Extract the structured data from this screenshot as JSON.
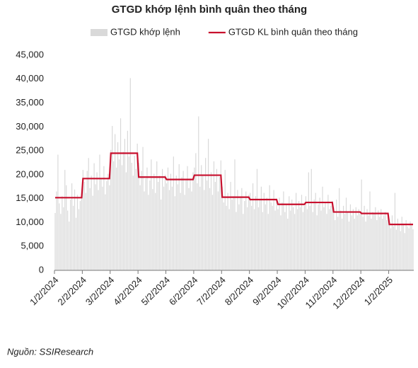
{
  "chart_data": {
    "type": "bar-line",
    "title": "GTGD khớp lệnh bình quân theo tháng",
    "source": "Nguồn: SSIResearch",
    "categories": [
      "1/2/2024",
      null,
      null,
      null,
      null,
      null,
      null,
      null,
      null,
      null,
      null,
      null,
      null,
      null,
      null,
      null,
      null,
      null,
      null,
      null,
      "2/2/2024",
      null,
      null,
      null,
      null,
      null,
      null,
      null,
      null,
      null,
      null,
      null,
      null,
      null,
      null,
      null,
      null,
      null,
      null,
      null,
      "3/2/2024",
      null,
      null,
      null,
      null,
      null,
      null,
      null,
      null,
      null,
      null,
      null,
      null,
      null,
      null,
      null,
      null,
      null,
      null,
      null,
      "4/2/2024",
      null,
      null,
      null,
      null,
      null,
      null,
      null,
      null,
      null,
      null,
      null,
      null,
      null,
      null,
      null,
      null,
      null,
      null,
      null,
      "5/2/2024",
      null,
      null,
      null,
      null,
      null,
      null,
      null,
      null,
      null,
      null,
      null,
      null,
      null,
      null,
      null,
      null,
      null,
      null,
      null,
      "6/2/2024",
      null,
      null,
      null,
      null,
      null,
      null,
      null,
      null,
      null,
      null,
      null,
      null,
      null,
      null,
      null,
      null,
      null,
      null,
      null,
      "7/2/2024",
      null,
      null,
      null,
      null,
      null,
      null,
      null,
      null,
      null,
      null,
      null,
      null,
      null,
      null,
      null,
      null,
      null,
      null,
      null,
      "8/2/2024",
      null,
      null,
      null,
      null,
      null,
      null,
      null,
      null,
      null,
      null,
      null,
      null,
      null,
      null,
      null,
      null,
      null,
      null,
      null,
      "9/2/2024",
      null,
      null,
      null,
      null,
      null,
      null,
      null,
      null,
      null,
      null,
      null,
      null,
      null,
      null,
      null,
      null,
      null,
      null,
      null,
      "10/2/2024",
      null,
      null,
      null,
      null,
      null,
      null,
      null,
      null,
      null,
      null,
      null,
      null,
      null,
      null,
      null,
      null,
      null,
      null,
      null,
      "11/2/2024",
      null,
      null,
      null,
      null,
      null,
      null,
      null,
      null,
      null,
      null,
      null,
      null,
      null,
      null,
      null,
      null,
      null,
      null,
      null,
      "12/2/2024",
      null,
      null,
      null,
      null,
      null,
      null,
      null,
      null,
      null,
      null,
      null,
      null,
      null,
      null,
      null,
      null,
      null,
      null,
      null,
      "1/2/2025",
      null,
      null,
      null,
      null,
      null,
      null,
      null,
      null,
      null,
      null,
      null,
      null,
      null,
      null,
      null,
      null,
      null
    ],
    "series": [
      {
        "name": "GTGD khớp lệnh",
        "color": "#d9d9d9",
        "kind": "bar",
        "values": [
          12000,
          16500,
          24200,
          14000,
          11800,
          15500,
          13200,
          21000,
          17800,
          12500,
          10200,
          14800,
          18200,
          13500,
          16900,
          11000,
          15800,
          12800,
          14500,
          16000,
          21000,
          18500,
          16200,
          20800,
          23500,
          17200,
          19800,
          15600,
          22400,
          18000,
          20500,
          16800,
          24200,
          19100,
          17500,
          21800,
          15900,
          18700,
          20200,
          17800,
          25200,
          30200,
          22800,
          28500,
          21500,
          26800,
          23200,
          31800,
          22000,
          24800,
          27500,
          20500,
          29200,
          23800,
          40200,
          22500,
          19800,
          24000,
          21200,
          26500,
          22500,
          17800,
          20800,
          25800,
          16500,
          19200,
          21500,
          15800,
          18800,
          23200,
          17000,
          20200,
          16200,
          22800,
          18500,
          19800,
          14800,
          21200,
          17500,
          20000,
          18200,
          21500,
          16800,
          20200,
          17500,
          23800,
          15500,
          19800,
          18000,
          22200,
          16200,
          19500,
          20800,
          15800,
          18800,
          21800,
          17200,
          19200,
          16500,
          20500,
          21500,
          24500,
          18200,
          32200,
          17500,
          22000,
          19800,
          16800,
          23500,
          18800,
          27500,
          17200,
          20500,
          15800,
          22800,
          18500,
          21200,
          16500,
          19500,
          23000,
          17500,
          14200,
          21000,
          13500,
          16200,
          12800,
          18500,
          14800,
          15500,
          23200,
          12200,
          16800,
          13800,
          15200,
          17200,
          11800,
          14500,
          16500,
          13200,
          15800,
          16200,
          13500,
          18200,
          12800,
          15500,
          21200,
          13200,
          14800,
          17500,
          12200,
          16200,
          13800,
          15200,
          11800,
          17800,
          14200,
          13500,
          16800,
          12500,
          15000,
          12800,
          15200,
          11500,
          14200,
          16500,
          12200,
          13800,
          10800,
          15500,
          12500,
          14800,
          13200,
          11800,
          16200,
          12800,
          14500,
          13200,
          15800,
          12200,
          13500,
          15500,
          12800,
          20500,
          13500,
          21200,
          12200,
          14800,
          16200,
          11500,
          13800,
          15200,
          12500,
          17500,
          13200,
          14200,
          11800,
          15800,
          12800,
          13500,
          14500,
          13200,
          10500,
          14800,
          11200,
          17200,
          12500,
          10800,
          13500,
          11800,
          15200,
          12200,
          10200,
          13800,
          11500,
          12800,
          10800,
          13200,
          11500,
          12800,
          11800,
          19000,
          11200,
          13500,
          10200,
          12800,
          11500,
          16500,
          10800,
          12200,
          11800,
          13200,
          10500,
          12500,
          11200,
          12800,
          10800,
          11500,
          12200,
          10500,
          11800,
          10200,
          8800,
          11500,
          9200,
          16200,
          8500,
          10800,
          9500,
          8200,
          11200,
          9800,
          7800,
          10500,
          9200,
          8800,
          10200,
          9500,
          8600
        ]
      },
      {
        "name": "GTGD KL bình quân theo tháng",
        "color": "#c8102e",
        "kind": "line",
        "values": [
          15200,
          15200,
          15200,
          15200,
          15200,
          15200,
          15200,
          15200,
          15200,
          15200,
          15200,
          15200,
          15200,
          15200,
          15200,
          15200,
          15200,
          15200,
          15200,
          15200,
          19200,
          19200,
          19200,
          19200,
          19200,
          19200,
          19200,
          19200,
          19200,
          19200,
          19200,
          19200,
          19200,
          19200,
          19200,
          19200,
          19200,
          19200,
          19200,
          19200,
          24500,
          24500,
          24500,
          24500,
          24500,
          24500,
          24500,
          24500,
          24500,
          24500,
          24500,
          24500,
          24500,
          24500,
          24500,
          24500,
          24500,
          24500,
          24500,
          24500,
          19500,
          19500,
          19500,
          19500,
          19500,
          19500,
          19500,
          19500,
          19500,
          19500,
          19500,
          19500,
          19500,
          19500,
          19500,
          19500,
          19500,
          19500,
          19500,
          19500,
          19000,
          19000,
          19000,
          19000,
          19000,
          19000,
          19000,
          19000,
          19000,
          19000,
          19000,
          19000,
          19000,
          19000,
          19000,
          19000,
          19000,
          19000,
          19000,
          19000,
          19900,
          19900,
          19900,
          19900,
          19900,
          19900,
          19900,
          19900,
          19900,
          19900,
          19900,
          19900,
          19900,
          19900,
          19900,
          19900,
          19900,
          19900,
          19900,
          19900,
          15300,
          15300,
          15300,
          15300,
          15300,
          15300,
          15300,
          15300,
          15300,
          15300,
          15300,
          15300,
          15300,
          15300,
          15300,
          15300,
          15300,
          15300,
          15300,
          15300,
          14800,
          14800,
          14800,
          14800,
          14800,
          14800,
          14800,
          14800,
          14800,
          14800,
          14800,
          14800,
          14800,
          14800,
          14800,
          14800,
          14800,
          14800,
          14800,
          14800,
          13800,
          13800,
          13800,
          13800,
          13800,
          13800,
          13800,
          13800,
          13800,
          13800,
          13800,
          13800,
          13800,
          13800,
          13800,
          13800,
          13800,
          13800,
          13800,
          13800,
          14200,
          14200,
          14200,
          14200,
          14200,
          14200,
          14200,
          14200,
          14200,
          14200,
          14200,
          14200,
          14200,
          14200,
          14200,
          14200,
          14200,
          14200,
          14200,
          14200,
          12200,
          12200,
          12200,
          12200,
          12200,
          12200,
          12200,
          12200,
          12200,
          12200,
          12200,
          12200,
          12200,
          12200,
          12200,
          12200,
          12200,
          12200,
          12200,
          12200,
          11900,
          11900,
          11900,
          11900,
          11900,
          11900,
          11900,
          11900,
          11900,
          11900,
          11900,
          11900,
          11900,
          11900,
          11900,
          11900,
          11900,
          11900,
          11900,
          11900,
          9600,
          9600,
          9600,
          9600,
          9600,
          9600,
          9600,
          9600,
          9600,
          9600,
          9600,
          9600,
          9600,
          9600,
          9600,
          9600,
          9600,
          9600
        ]
      }
    ],
    "ylim": [
      0,
      45000
    ],
    "yticks": [
      0,
      {
        "value": 5000,
        "label": "5,000"
      },
      {
        "value": 10000,
        "label": "10,000"
      },
      {
        "value": 15000,
        "label": "15,000"
      },
      {
        "value": 20000,
        "label": "20,000"
      },
      {
        "value": 25000,
        "label": "25,000"
      },
      {
        "value": 30000,
        "label": "30,000"
      },
      {
        "value": 35000,
        "label": "35,000"
      },
      {
        "value": 40000,
        "label": "40,000"
      },
      {
        "value": 45000,
        "label": "45,000"
      }
    ],
    "grid": false
  }
}
